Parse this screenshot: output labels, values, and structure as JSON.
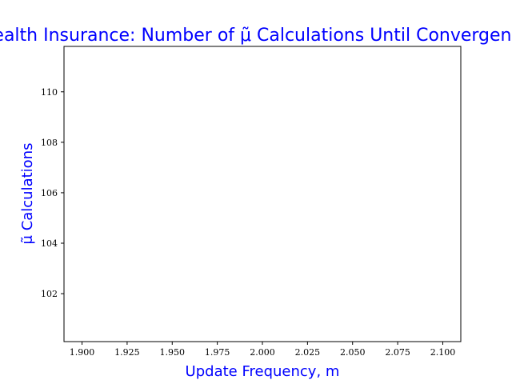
{
  "chart_data": {
    "type": "line",
    "title": "Health Insurance: Number of μ̃ Calculations Until Convergence",
    "xlabel": "Update Frequency, m",
    "ylabel": "μ̃ Calculations",
    "xlim": [
      1.89,
      2.11
    ],
    "ylim": [
      100.1,
      111.8
    ],
    "x_ticks": [
      1.9,
      1.925,
      1.95,
      1.975,
      2.0,
      2.025,
      2.05,
      2.075,
      2.1
    ],
    "x_tick_labels": [
      "1.900",
      "1.925",
      "1.950",
      "1.975",
      "2.000",
      "2.025",
      "2.050",
      "2.075",
      "2.100"
    ],
    "y_ticks": [
      102,
      104,
      106,
      108,
      110
    ],
    "y_tick_labels": [
      "102",
      "104",
      "106",
      "108",
      "110"
    ],
    "grid": false,
    "series": [],
    "colors": {
      "text_accent": "#0000ff",
      "axes": "#000000"
    }
  }
}
